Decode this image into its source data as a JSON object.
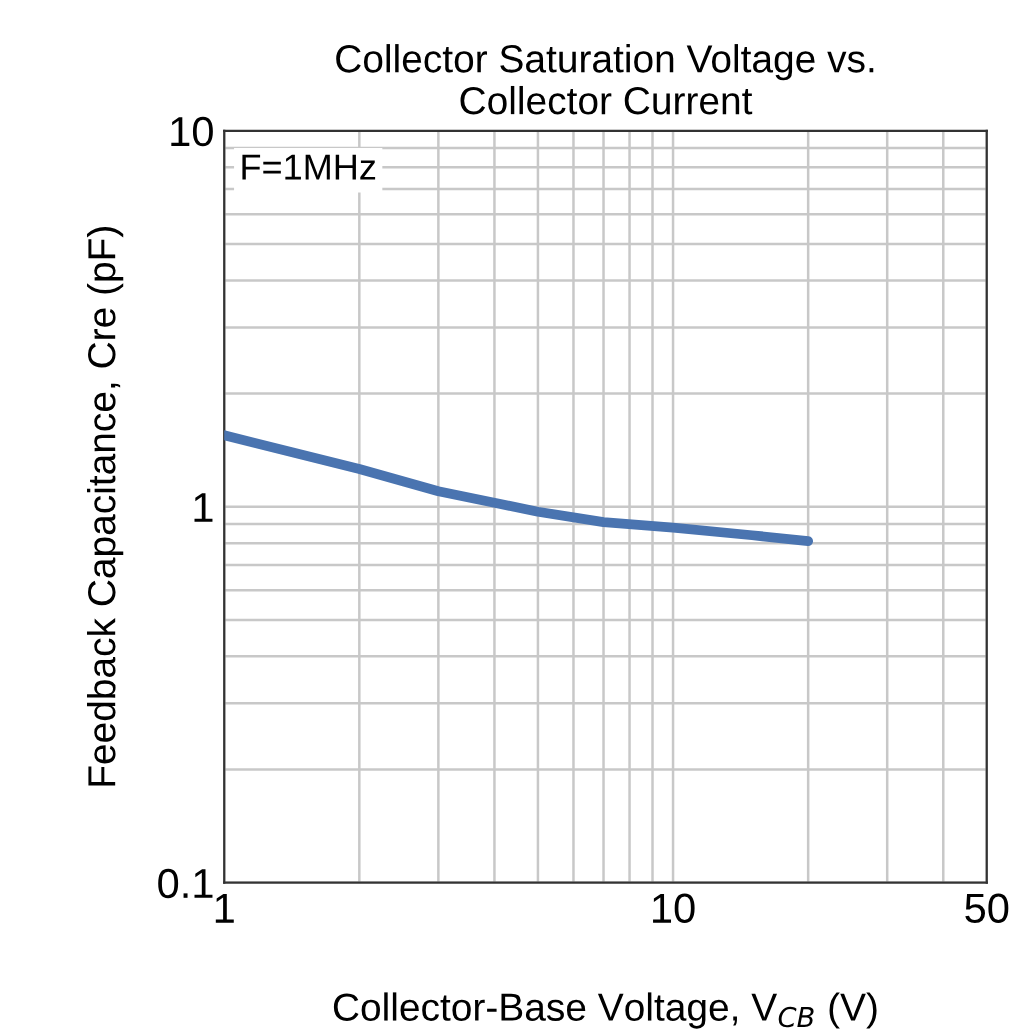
{
  "chart_data": {
    "type": "line",
    "title": "Collector Saturation Voltage vs.\nCollector Current",
    "xlabel": "Collector-Base Voltage, V$_{CB}$ (V)",
    "ylabel": "Feedback Capacitance, Cre (pF)",
    "annotations": [
      "F=1MHz"
    ],
    "log": "xy",
    "xlim": [
      1,
      50
    ],
    "ylim": [
      0.1,
      10
    ],
    "xticks": [
      1,
      10,
      50
    ],
    "yticks": [
      0.1,
      1,
      10
    ],
    "grid": true,
    "marker": "none",
    "line_style": "solid",
    "series": [
      {
        "color": "#4a74b0",
        "x": [
          1,
          2,
          3,
          5,
          7,
          10,
          15,
          20
        ],
        "values": [
          1.55,
          1.26,
          1.1,
          0.97,
          0.91,
          0.88,
          0.84,
          0.81
        ]
      }
    ]
  }
}
